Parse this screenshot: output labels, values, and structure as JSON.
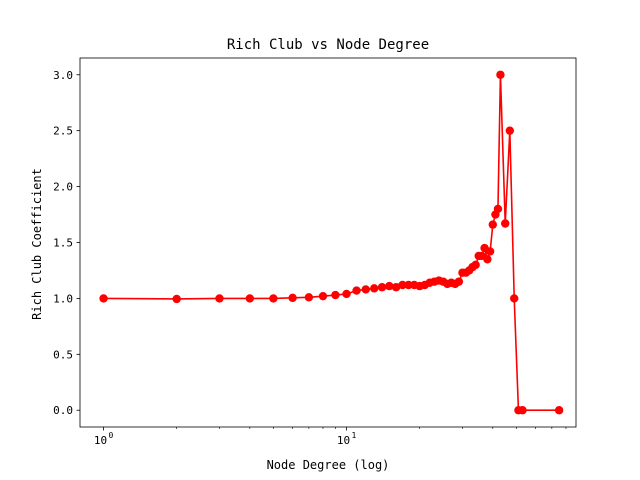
{
  "chart_data": {
    "type": "line",
    "title": "Rich Club vs Node Degree",
    "xlabel": "Node Degree (log)",
    "ylabel": "Rich Club Coefficient",
    "x_scale": "log",
    "xlim": [
      0.8,
      88
    ],
    "ylim": [
      -0.15,
      3.15
    ],
    "x_major_ticks": [
      {
        "value": 1,
        "base": "10",
        "exp": "0"
      },
      {
        "value": 10,
        "base": "10",
        "exp": "1"
      }
    ],
    "x_minor_ticks": [
      2,
      3,
      4,
      5,
      6,
      7,
      8,
      9,
      20,
      30,
      40,
      50,
      60,
      70,
      80
    ],
    "y_ticks": [
      {
        "value": 0.0,
        "label": "0.0"
      },
      {
        "value": 0.5,
        "label": "0.5"
      },
      {
        "value": 1.0,
        "label": "1.0"
      },
      {
        "value": 1.5,
        "label": "1.5"
      },
      {
        "value": 2.0,
        "label": "2.0"
      },
      {
        "value": 2.5,
        "label": "2.5"
      },
      {
        "value": 3.0,
        "label": "3.0"
      }
    ],
    "grid": false,
    "legend": "none",
    "series_color": "#ff0000",
    "marker": "circle",
    "series": [
      {
        "x": [
          1,
          2,
          3,
          4,
          5,
          6,
          7,
          8,
          9,
          10,
          11,
          12,
          13,
          14,
          15,
          16,
          17,
          18,
          19,
          20,
          21,
          22,
          23,
          24,
          25,
          26,
          27,
          28,
          29,
          30,
          31,
          32,
          33,
          34,
          35,
          36,
          37,
          38,
          39,
          40,
          41,
          42,
          43,
          45,
          47,
          49,
          51,
          53,
          75
        ],
        "y": [
          1.0,
          0.995,
          1.0,
          1.0,
          1.0,
          1.005,
          1.01,
          1.02,
          1.03,
          1.04,
          1.07,
          1.08,
          1.09,
          1.1,
          1.11,
          1.1,
          1.12,
          1.12,
          1.12,
          1.11,
          1.12,
          1.14,
          1.15,
          1.16,
          1.15,
          1.13,
          1.14,
          1.13,
          1.15,
          1.23,
          1.23,
          1.25,
          1.28,
          1.3,
          1.38,
          1.38,
          1.45,
          1.35,
          1.42,
          1.66,
          1.75,
          1.8,
          3.0,
          1.67,
          2.5,
          1.0,
          0.0,
          0.0,
          0.0
        ]
      }
    ]
  }
}
